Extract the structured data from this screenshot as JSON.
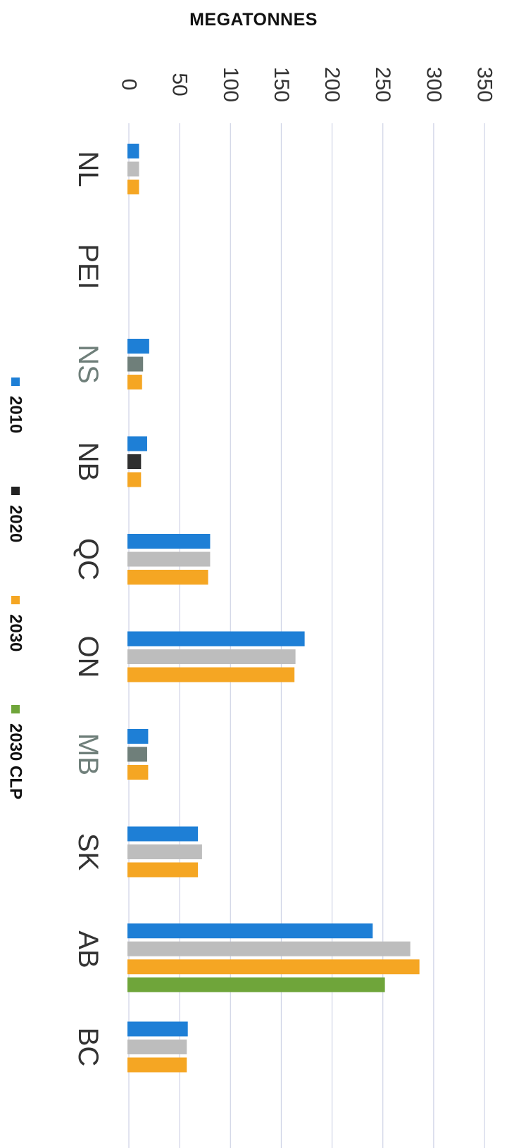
{
  "chart_data": {
    "type": "bar",
    "orientation": "horizontal",
    "value_axis_label": "MEGATONNES",
    "title": "",
    "xlim": [
      0,
      350
    ],
    "ticks": [
      0,
      50,
      100,
      150,
      200,
      250,
      300,
      350
    ],
    "grid": true,
    "legend_placement": "left",
    "categories": [
      "NL",
      "PEI",
      "NS",
      "NB",
      "QC",
      "ON",
      "MB",
      "SK",
      "AB",
      "BC"
    ],
    "category_colors": [
      "#333333",
      "#333333",
      "#6f7f7a",
      "#333333",
      "#333333",
      "#333333",
      "#6f7f7a",
      "#333333",
      "#333333",
      "#333333"
    ],
    "series": [
      {
        "name": "2010",
        "color": "#1e7fd6",
        "values": [
          10,
          0,
          20,
          18,
          80,
          173,
          19,
          68,
          240,
          58
        ]
      },
      {
        "name": "2020",
        "color": "#bdbdbd",
        "legend_color": "#222222",
        "values": [
          10,
          0,
          14,
          12,
          80,
          164,
          18,
          72,
          277,
          57
        ]
      },
      {
        "name": "2030",
        "color": "#f5a623",
        "values": [
          10,
          0,
          13,
          12,
          78,
          163,
          19,
          68,
          286,
          57
        ]
      },
      {
        "name": "2030 CLP",
        "color": "#6fa53a",
        "values": [
          null,
          null,
          null,
          null,
          null,
          null,
          null,
          null,
          252,
          null
        ]
      }
    ],
    "point_color_overrides": [
      {
        "series": 1,
        "category": 2,
        "color": "#6f7f7a"
      },
      {
        "series": 1,
        "category": 3,
        "color": "#2f2f2f"
      },
      {
        "series": 1,
        "category": 6,
        "color": "#6f7f7a"
      }
    ]
  }
}
